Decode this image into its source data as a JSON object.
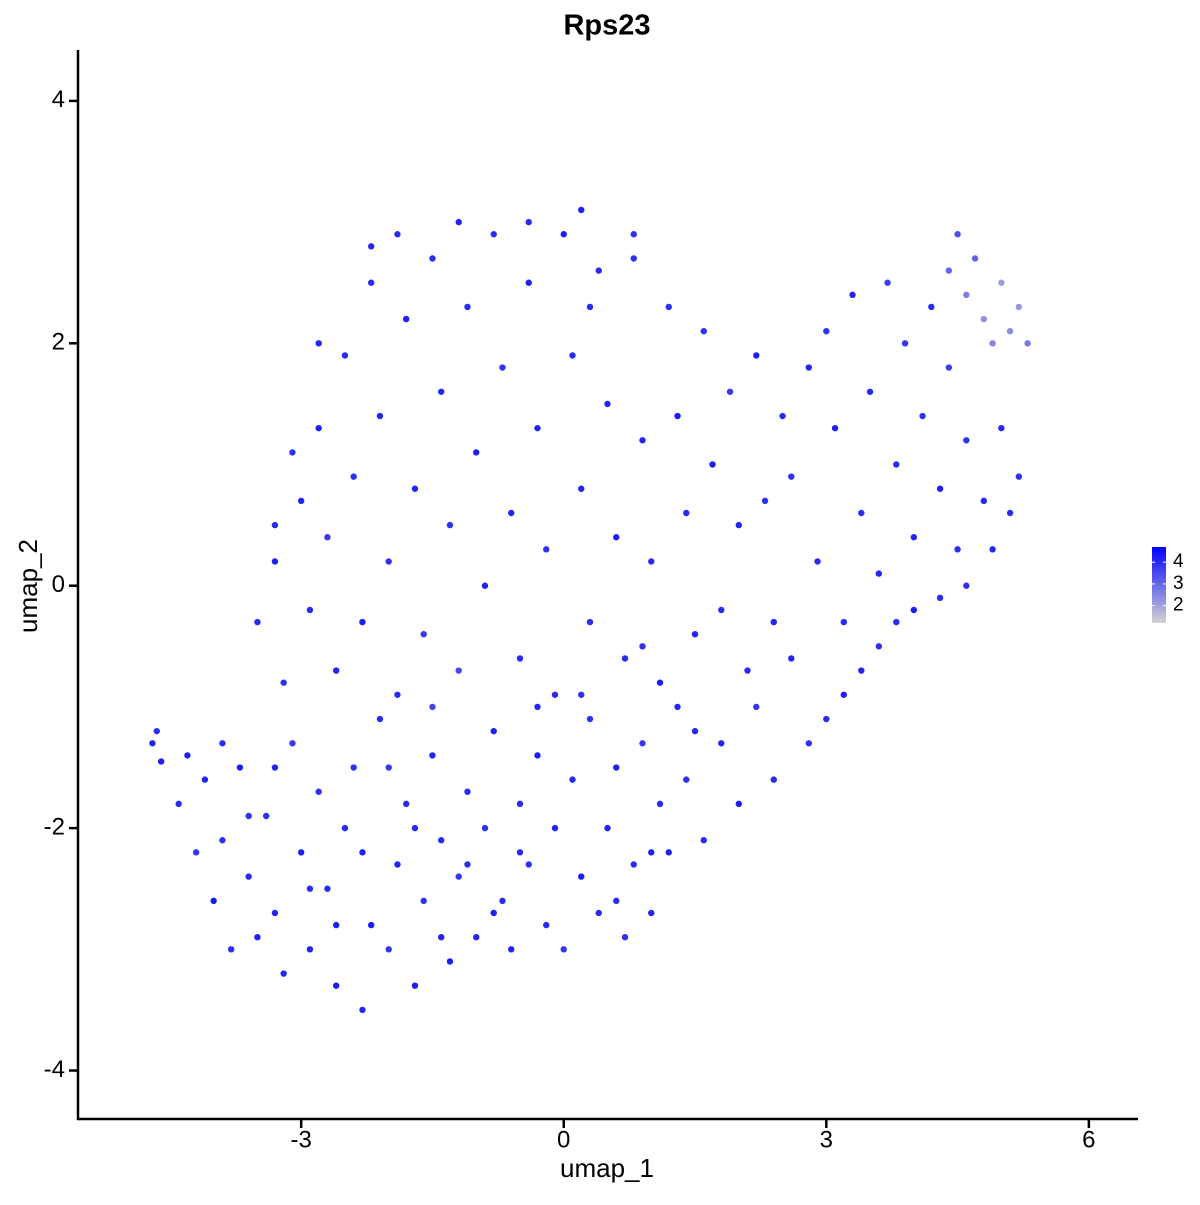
{
  "chart_data": {
    "type": "scatter",
    "title": "Rps23",
    "xlabel": "umap_1",
    "ylabel": "umap_2",
    "xlim": [
      -5.55,
      6.55
    ],
    "xticks": [
      -3,
      0,
      3,
      6
    ],
    "ylim": [
      -4.4,
      4.42
    ],
    "yticks": [
      -4,
      -2,
      0,
      2,
      4
    ],
    "color_low": "#d3d3d3",
    "color_high": "#0000ff",
    "color_lim": [
      1.2,
      4.7
    ],
    "color_ticks": [
      2,
      3,
      4
    ],
    "x": [
      -4.7,
      -4.65,
      -4.6,
      -4.4,
      -4.2,
      -4.1,
      -4.0,
      -3.9,
      -3.8,
      -3.7,
      -3.6,
      -3.5,
      -3.4,
      -3.3,
      -3.2,
      -3.1,
      -3.0,
      -2.9,
      -2.8,
      -2.7,
      -2.6,
      -2.5,
      -2.4,
      -2.3,
      -2.2,
      -2.1,
      -2.0,
      -1.9,
      -1.8,
      -1.7,
      -1.6,
      -1.5,
      -1.4,
      -1.3,
      -1.2,
      -1.1,
      -1.0,
      -0.9,
      -0.8,
      -0.7,
      -0.6,
      -0.5,
      -0.4,
      -0.3,
      -0.2,
      -0.1,
      0.0,
      0.1,
      0.2,
      0.3,
      0.4,
      0.5,
      0.6,
      0.7,
      0.8,
      0.9,
      1.0,
      1.1,
      1.2,
      1.3,
      1.4,
      1.6,
      1.8,
      2.0,
      2.2,
      2.4,
      2.6,
      2.8,
      3.0,
      3.2,
      3.4,
      3.6,
      3.8,
      4.0,
      4.3,
      4.6,
      4.9,
      5.1,
      -4.3,
      -3.9,
      -3.6,
      -3.3,
      -2.9,
      -2.6,
      -2.3,
      -2.0,
      -1.7,
      -1.4,
      -1.1,
      -0.8,
      -0.5,
      -0.3,
      0.2,
      0.6,
      1.0,
      1.5,
      0.9,
      -1.5,
      -2.2,
      -1.9,
      -3.5,
      -3.3,
      -3.2,
      -3.0,
      -2.9,
      -2.8,
      -2.7,
      -2.6,
      -2.5,
      -2.4,
      -2.3,
      -2.2,
      -2.1,
      -2.0,
      -1.9,
      -1.8,
      -1.7,
      -1.6,
      -1.5,
      -1.4,
      -1.3,
      -1.2,
      -1.1,
      -1.0,
      -0.9,
      -0.8,
      -0.7,
      -0.6,
      -0.5,
      -0.4,
      -0.3,
      -0.2,
      -0.1,
      0.0,
      0.1,
      0.2,
      0.3,
      0.4,
      0.5,
      0.6,
      0.7,
      0.8,
      0.9,
      1.0,
      1.1,
      1.2,
      1.3,
      1.4,
      1.5,
      1.6,
      1.7,
      1.8,
      1.9,
      2.0,
      2.1,
      2.2,
      2.3,
      2.4,
      2.5,
      2.6,
      2.8,
      2.9,
      3.0,
      3.1,
      3.2,
      3.3,
      3.4,
      3.5,
      3.6,
      3.7,
      3.8,
      3.9,
      4.0,
      4.1,
      4.2,
      4.3,
      4.4,
      4.5,
      4.6,
      4.8,
      5.0,
      5.2,
      -1.2,
      -0.4,
      0.2,
      0.8,
      0.3,
      -2.8,
      -3.1,
      -3.3,
      4.4,
      4.5,
      4.6,
      4.7,
      4.8,
      4.9,
      5.0,
      5.1,
      5.2,
      5.3
    ],
    "y": [
      -1.3,
      -1.2,
      -1.45,
      -1.8,
      -2.2,
      -1.6,
      -2.6,
      -2.1,
      -3.0,
      -1.5,
      -2.4,
      -2.9,
      -1.9,
      -2.7,
      -3.2,
      -1.3,
      -2.2,
      -3.0,
      -1.7,
      -2.5,
      -3.3,
      -2.0,
      -1.5,
      -3.5,
      -2.8,
      -1.1,
      -3.0,
      -2.3,
      -1.8,
      -3.3,
      -2.6,
      -1.4,
      -2.1,
      -3.1,
      -2.4,
      -1.7,
      -2.9,
      -2.0,
      -1.2,
      -2.6,
      -3.0,
      -1.8,
      -2.3,
      -1.4,
      -2.8,
      -2.0,
      -3.0,
      -1.6,
      -2.4,
      -1.1,
      -2.7,
      -2.0,
      -1.5,
      -2.9,
      -2.3,
      -1.3,
      -2.7,
      -1.8,
      -2.2,
      -1.0,
      -1.6,
      -2.1,
      -1.3,
      -1.8,
      -1.0,
      -1.6,
      -0.6,
      -1.3,
      -1.1,
      -0.9,
      -0.7,
      -0.5,
      -0.3,
      -0.2,
      -0.1,
      0.0,
      0.3,
      0.6,
      -1.4,
      -1.3,
      -1.9,
      -1.5,
      -2.5,
      -2.8,
      -2.2,
      -1.5,
      -2.0,
      -2.9,
      -2.3,
      -2.7,
      -2.2,
      -1.0,
      -0.9,
      -2.6,
      -2.2,
      -1.2,
      -0.5,
      -1.0,
      2.8,
      2.9,
      -0.3,
      0.2,
      -0.8,
      0.7,
      -0.2,
      1.3,
      0.4,
      -0.7,
      1.9,
      0.9,
      -0.3,
      2.5,
      1.4,
      0.2,
      -0.9,
      2.2,
      0.8,
      -0.4,
      2.7,
      1.6,
      0.5,
      -0.7,
      2.3,
      1.1,
      0.0,
      2.9,
      1.8,
      0.6,
      -0.6,
      2.5,
      1.3,
      0.3,
      -0.9,
      2.9,
      1.9,
      0.8,
      -0.3,
      2.6,
      1.5,
      0.4,
      -0.6,
      2.7,
      1.2,
      0.2,
      -0.8,
      2.3,
      1.4,
      0.6,
      -0.4,
      2.1,
      1.0,
      -0.2,
      1.6,
      0.5,
      -0.7,
      1.9,
      0.7,
      -0.3,
      1.4,
      0.9,
      1.8,
      0.2,
      2.1,
      1.3,
      -0.3,
      2.4,
      0.6,
      1.6,
      0.1,
      2.5,
      1.0,
      2.0,
      0.4,
      1.4,
      2.3,
      0.8,
      1.8,
      0.3,
      1.2,
      0.7,
      1.3,
      0.9,
      3.0,
      3.0,
      3.1,
      2.9,
      2.3,
      2.0,
      1.1,
      0.5,
      2.6,
      2.9,
      2.4,
      2.7,
      2.2,
      2.0,
      2.5,
      2.1,
      2.3,
      2.0
    ],
    "expression": [
      4.1,
      3.9,
      4.2,
      4.0,
      3.8,
      4.1,
      4.3,
      3.9,
      4.0,
      4.2,
      4.0,
      4.2,
      3.9,
      4.1,
      4.0,
      3.8,
      4.2,
      4.1,
      3.9,
      4.0,
      4.2,
      4.0,
      3.9,
      4.1,
      4.3,
      4.0,
      3.8,
      4.1,
      4.0,
      4.2,
      3.9,
      4.1,
      4.0,
      4.2,
      3.8,
      4.0,
      4.1,
      3.9,
      4.2,
      4.0,
      4.1,
      4.0,
      3.9,
      4.2,
      4.0,
      4.1,
      3.8,
      4.0,
      4.2,
      3.9,
      4.0,
      4.1,
      4.2,
      3.9,
      4.0,
      3.8,
      4.1,
      4.0,
      4.2,
      4.1,
      3.9,
      4.0,
      4.1,
      4.2,
      3.8,
      4.0,
      4.1,
      3.9,
      4.0,
      4.2,
      4.1,
      3.9,
      4.0,
      4.2,
      4.0,
      3.9,
      4.1,
      4.0,
      4.2,
      4.0,
      3.9,
      4.1,
      4.0,
      4.2,
      4.1,
      3.8,
      4.0,
      4.1,
      3.9,
      4.2,
      4.0,
      4.1,
      3.9,
      4.0,
      4.2,
      4.1,
      3.9,
      3.6,
      4.1,
      4.0,
      4.0,
      4.2,
      3.9,
      4.1,
      4.0,
      4.2,
      3.8,
      4.1,
      4.0,
      3.9,
      4.2,
      4.0,
      4.1,
      3.9,
      4.0,
      4.2,
      4.1,
      3.8,
      4.0,
      4.1,
      3.9,
      3.5,
      4.0,
      4.2,
      4.1,
      4.0,
      3.9,
      4.1,
      4.0,
      4.2,
      4.1,
      3.9,
      4.0,
      4.2,
      4.0,
      4.1,
      3.9,
      4.0,
      4.1,
      4.2,
      4.0,
      3.9,
      4.1,
      4.0,
      4.2,
      3.9,
      4.3,
      4.0,
      4.1,
      3.9,
      4.2,
      4.0,
      3.8,
      4.1,
      4.0,
      4.2,
      3.9,
      4.1,
      4.0,
      3.9,
      4.1,
      4.0,
      3.9,
      4.2,
      4.0,
      4.1,
      3.9,
      4.0,
      4.1,
      3.7,
      4.0,
      3.8,
      4.1,
      3.9,
      4.0,
      4.2,
      3.7,
      4.0,
      3.9,
      4.1,
      4.0,
      3.9,
      4.1,
      4.0,
      4.2,
      3.9,
      4.0,
      4.1,
      3.9,
      4.0,
      3.0,
      3.4,
      2.6,
      3.1,
      2.3,
      2.5,
      2.1,
      2.4,
      2.2,
      2.7
    ]
  }
}
